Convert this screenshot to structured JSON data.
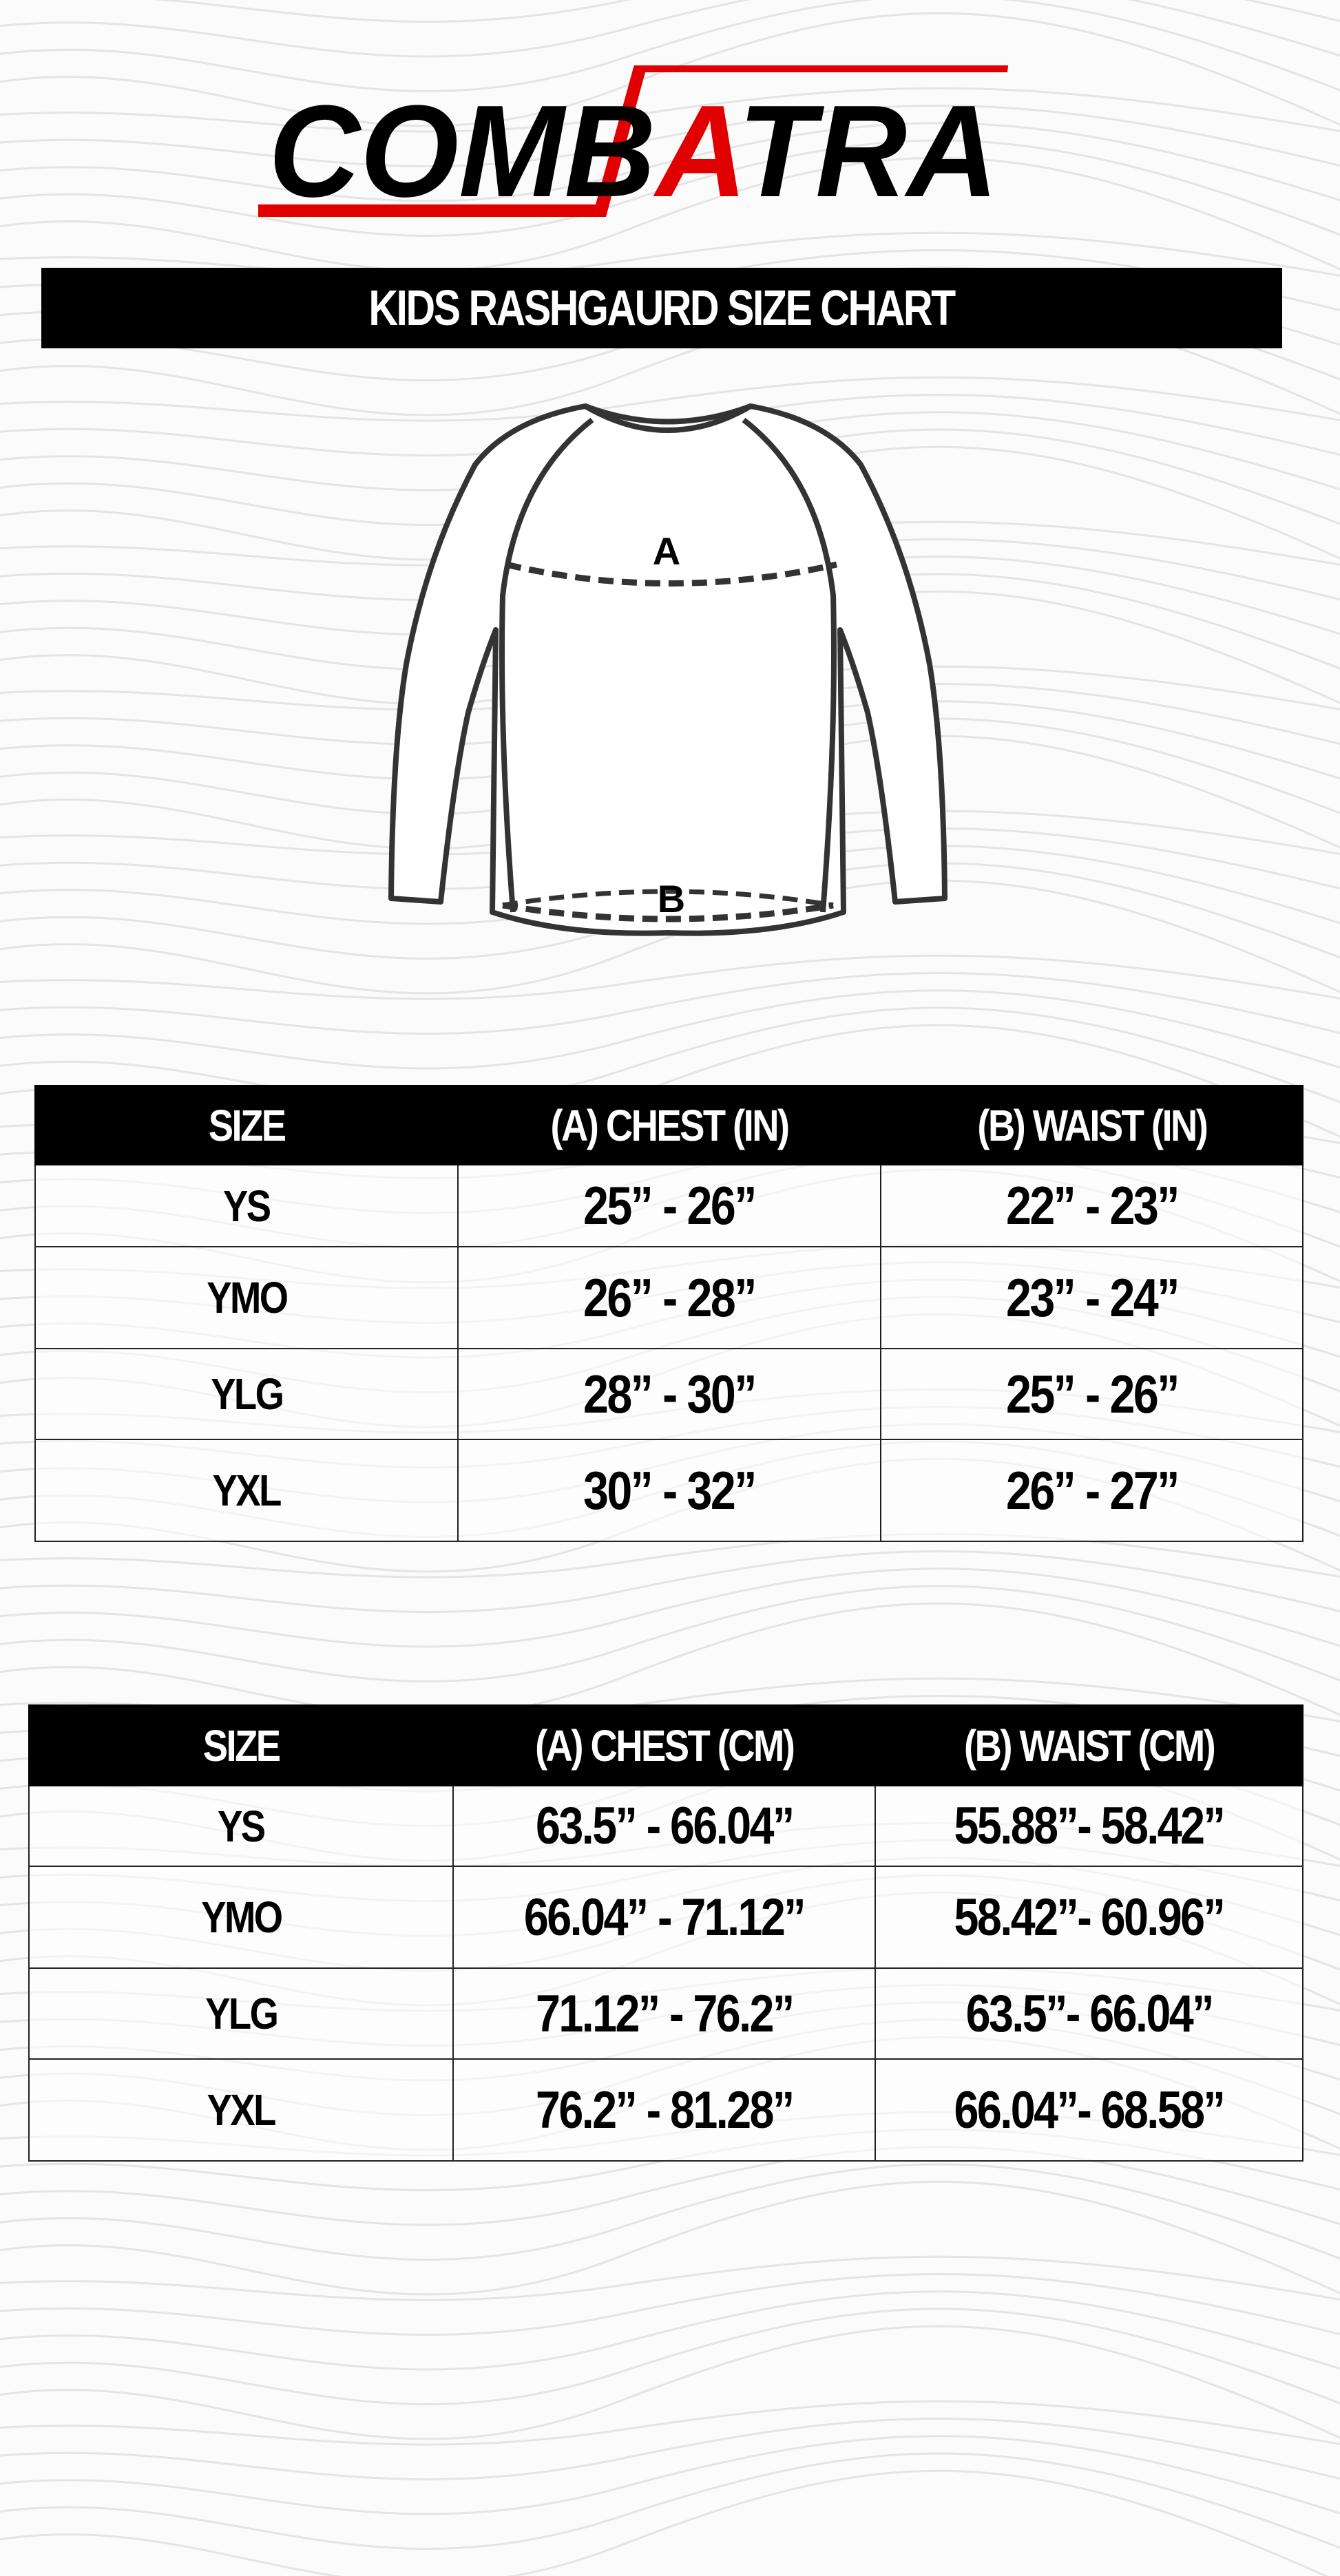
{
  "brand": {
    "logo_text": "COMBATRA",
    "colors": {
      "black": "#000000",
      "red": "#e00000"
    }
  },
  "title": "KIDS  RASHGAURD SIZE CHART",
  "diagram": {
    "chest_marker": "A",
    "waist_marker": "B"
  },
  "table_in": {
    "headers": [
      "SIZE",
      "(A) CHEST (IN)",
      "(B) WAIST (IN)"
    ],
    "rows": [
      [
        "YS",
        "25” - 26”",
        "22” - 23”"
      ],
      [
        "YMO",
        "26” - 28”",
        "23” - 24”"
      ],
      [
        "YLG",
        "28”  - 30”",
        "25”  - 26”"
      ],
      [
        "YXL",
        "30” - 32”",
        "26” - 27”"
      ]
    ]
  },
  "table_cm": {
    "headers": [
      "SIZE",
      "(A) CHEST (CM)",
      "(B) WAIST (CM)"
    ],
    "rows": [
      [
        "YS",
        "63.5” - 66.04”",
        "55.88”- 58.42”"
      ],
      [
        "YMO",
        "66.04” - 71.12”",
        "58.42”- 60.96”"
      ],
      [
        "YLG",
        "71.12” - 76.2”",
        "63.5”- 66.04”"
      ],
      [
        "YXL",
        "76.2” - 81.28”",
        "66.04”- 68.58”"
      ]
    ]
  }
}
